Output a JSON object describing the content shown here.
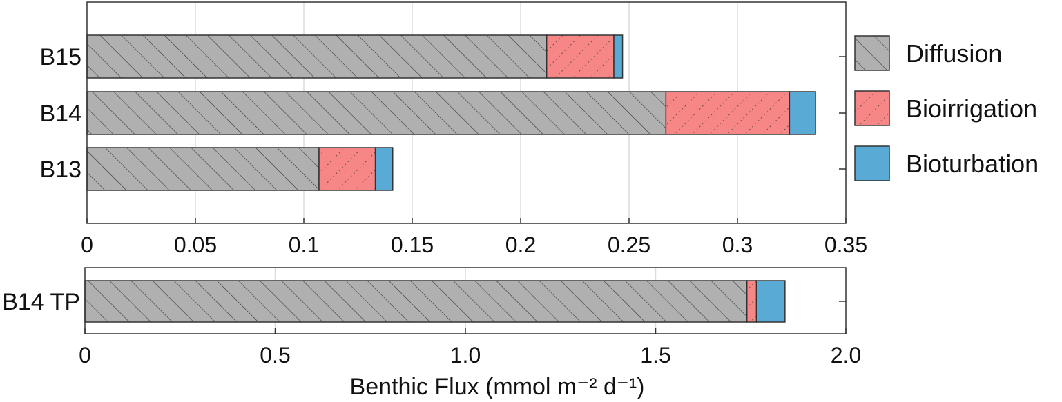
{
  "colors": {
    "diffusion": "#b0b0b0",
    "bioirrigation": "#f78787",
    "bioturbation": "#5aaad6",
    "edge": "#333333",
    "grid": "#dcdcdc"
  },
  "legend": [
    {
      "label": "Diffusion",
      "color": "#b0b0b0",
      "hatch": "diagonal"
    },
    {
      "label": "Bioirrigation",
      "color": "#f78787",
      "hatch": "dotted-diagonal"
    },
    {
      "label": "Bioturbation",
      "color": "#5aaad6",
      "hatch": "none"
    }
  ],
  "chart_data": [
    {
      "type": "bar",
      "orientation": "horizontal",
      "stacked": true,
      "categories": [
        "B15",
        "B14",
        "B13"
      ],
      "series": [
        {
          "name": "Diffusion",
          "values": [
            0.212,
            0.267,
            0.107
          ]
        },
        {
          "name": "Bioirrigation",
          "values": [
            0.031,
            0.057,
            0.026
          ]
        },
        {
          "name": "Bioturbation",
          "values": [
            0.004,
            0.012,
            0.008
          ]
        }
      ],
      "xlim": [
        0,
        0.35
      ],
      "xticks": [
        "0",
        "0.05",
        "0.1",
        "0.15",
        "0.2",
        "0.25",
        "0.3",
        "0.35"
      ],
      "grid": true,
      "legend": "right"
    },
    {
      "type": "bar",
      "orientation": "horizontal",
      "stacked": true,
      "categories": [
        "B14 TP"
      ],
      "series": [
        {
          "name": "Diffusion",
          "values": [
            1.74
          ]
        },
        {
          "name": "Bioirrigation",
          "values": [
            0.025
          ]
        },
        {
          "name": "Bioturbation",
          "values": [
            0.075
          ]
        }
      ],
      "xlim": [
        0,
        2.0
      ],
      "xticks": [
        "0",
        "0.5",
        "1.0",
        "1.5",
        "2.0"
      ],
      "xlabel": "Benthic Flux (mmol m⁻² d⁻¹)",
      "grid": true
    }
  ]
}
